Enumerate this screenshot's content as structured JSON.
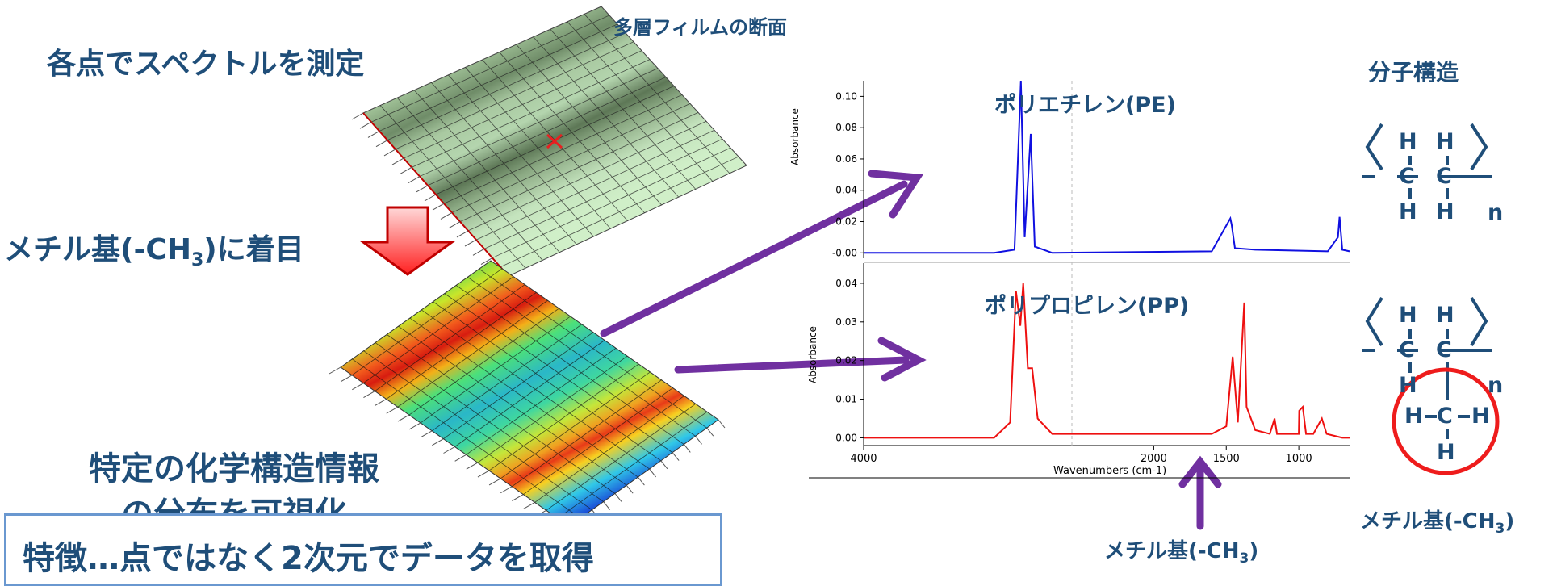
{
  "left": {
    "heading_measure": "各点でスペクトルを測定",
    "heading_focus_prefix": "メチル基(-CH",
    "heading_focus_sub": "3",
    "heading_focus_suffix": ")に着目",
    "heading_visualize_line1": "特定の化学構造情報",
    "heading_visualize_line2": "の分布を可視化",
    "film_label": "多層フィルムの断面",
    "bottom_note": "特徴…点ではなく2次元でデータを取得"
  },
  "spectra": {
    "top_label": "ポリエチレン(PE)",
    "bottom_label": "ポリプロピレン(PP)",
    "y_axis_label": "Absorbance",
    "x_axis_label": "Wavenumbers (cm-1)",
    "top_yticks": [
      "0.10",
      "0.08",
      "0.06",
      "0.04",
      "0.02",
      "-0.00"
    ],
    "bottom_yticks": [
      "0.04",
      "0.03",
      "0.02",
      "0.01",
      "0.00"
    ],
    "xticks": [
      "4000",
      "2000",
      "1500",
      "1000"
    ],
    "methyl_arrow_prefix": "メチル基(-CH",
    "methyl_arrow_sub": "3",
    "methyl_arrow_suffix": ")"
  },
  "structure": {
    "title": "分子構造",
    "atom_H": "H",
    "atom_C": "C",
    "atom_n": "n",
    "methyl_prefix": "メチル基(-CH",
    "methyl_sub": "3",
    "methyl_suffix": ")"
  },
  "colors": {
    "pe": "#1010e0",
    "pp": "#ee1010",
    "arrow": "#7030a0",
    "heading": "#1f4e79",
    "circle": "#ee1c1c"
  },
  "chart_data": [
    {
      "type": "line",
      "title": "ポリエチレン(PE)",
      "ylabel": "Absorbance",
      "xlabel": "",
      "xlim": [
        4000,
        650
      ],
      "ylim": [
        -0.005,
        0.11
      ],
      "series": [
        {
          "name": "ポリエチレン(PE)",
          "x": [
            4000,
            3100,
            2960,
            2916,
            2890,
            2848,
            2820,
            2700,
            1600,
            1472,
            1463,
            1440,
            1300,
            800,
            730,
            719,
            700,
            650
          ],
          "y": [
            0,
            0,
            0.002,
            0.11,
            0.01,
            0.076,
            0.004,
            0,
            0.001,
            0.022,
            0.018,
            0.003,
            0.002,
            0.001,
            0.01,
            0.023,
            0.002,
            0.001
          ]
        }
      ]
    },
    {
      "type": "line",
      "title": "ポリプロピレン(PP)",
      "ylabel": "Absorbance",
      "xlabel": "Wavenumbers (cm-1)",
      "xlim": [
        4000,
        650
      ],
      "ylim": [
        -0.002,
        0.045
      ],
      "series": [
        {
          "name": "ポリプロピレン(PP)",
          "x": [
            4000,
            3100,
            2990,
            2950,
            2920,
            2900,
            2868,
            2838,
            2800,
            2700,
            1600,
            1500,
            1456,
            1420,
            1376,
            1360,
            1300,
            1200,
            1167,
            1150,
            1100,
            1000,
            997,
            973,
            950,
            900,
            841,
            808,
            700,
            650
          ],
          "y": [
            0,
            0,
            0.004,
            0.038,
            0.029,
            0.04,
            0.018,
            0.018,
            0.005,
            0.001,
            0.001,
            0.003,
            0.021,
            0.004,
            0.035,
            0.008,
            0.002,
            0.001,
            0.005,
            0.001,
            0.001,
            0.001,
            0.007,
            0.008,
            0.001,
            0.001,
            0.005,
            0.001,
            0,
            0
          ]
        }
      ]
    }
  ]
}
